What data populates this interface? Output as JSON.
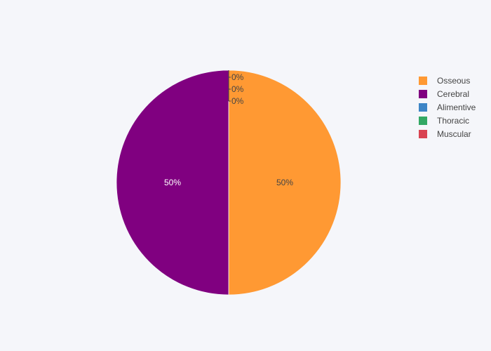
{
  "chart_data": {
    "type": "pie",
    "labels": [
      "Osseous",
      "Cerebral",
      "Alimentive",
      "Thoracic",
      "Muscular"
    ],
    "values": [
      50,
      50,
      0,
      0,
      0
    ],
    "colors": [
      "#ff9933",
      "#800080",
      "#3d85c6",
      "#33a864",
      "#d94452"
    ],
    "slice_labels": [
      "50%",
      "50%",
      "0%",
      "0%",
      "0%"
    ],
    "legend": {
      "position": "right"
    }
  }
}
